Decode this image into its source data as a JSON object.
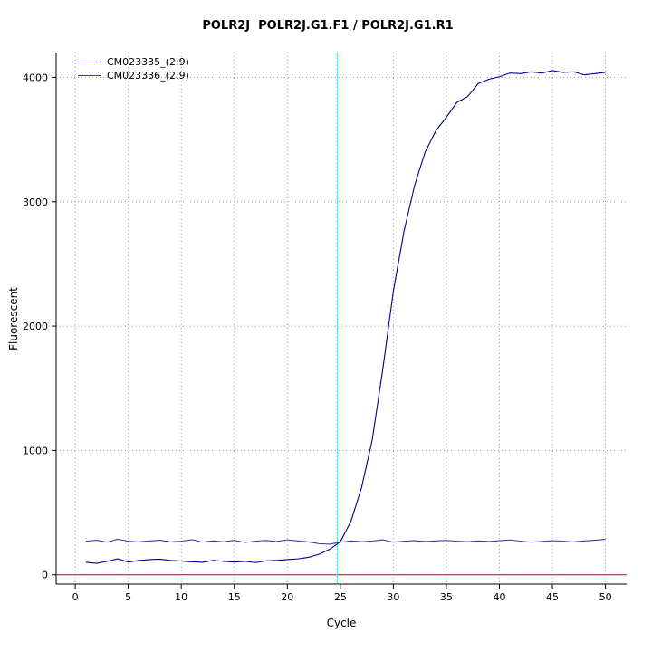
{
  "title": "POLR2J  POLR2J.G1.F1 / POLR2J.G1.R1",
  "chart_data": {
    "type": "line",
    "title": "POLR2J  POLR2J.G1.F1 / POLR2J.G1.R1",
    "xlabel": "Cycle",
    "ylabel": "Fluorescent",
    "xlim": [
      -1.8,
      52
    ],
    "ylim": [
      -75,
      4200
    ],
    "x_ticks": [
      0,
      5,
      10,
      15,
      20,
      25,
      30,
      35,
      40,
      45,
      50
    ],
    "y_ticks": [
      0,
      1000,
      2000,
      3000,
      4000
    ],
    "grid": true,
    "grid_color": "#999999",
    "legend_position": "top-left",
    "x": [
      1,
      2,
      3,
      4,
      5,
      6,
      7,
      8,
      9,
      10,
      11,
      12,
      13,
      14,
      15,
      16,
      17,
      18,
      19,
      20,
      21,
      22,
      23,
      24,
      25,
      26,
      27,
      28,
      29,
      30,
      31,
      32,
      33,
      34,
      35,
      36,
      37,
      38,
      39,
      40,
      41,
      42,
      43,
      44,
      45,
      46,
      47,
      48,
      49,
      50
    ],
    "series": [
      {
        "name": "CM023335_(2:9)",
        "color": "#00008b",
        "values": [
          100,
          92,
          108,
          128,
          102,
          115,
          122,
          126,
          115,
          110,
          104,
          100,
          116,
          108,
          102,
          108,
          98,
          112,
          116,
          122,
          128,
          140,
          165,
          205,
          265,
          430,
          700,
          1080,
          1650,
          2280,
          2760,
          3130,
          3400,
          3570,
          3680,
          3800,
          3845,
          3950,
          3985,
          4005,
          4035,
          4030,
          4045,
          4035,
          4055,
          4040,
          4045,
          4020,
          4030,
          4040
        ]
      },
      {
        "name": "CM023336_(2:9)",
        "color": "#3b3b9d",
        "values": [
          270,
          278,
          262,
          286,
          270,
          264,
          272,
          278,
          264,
          270,
          282,
          262,
          272,
          265,
          277,
          260,
          270,
          276,
          268,
          281,
          272,
          264,
          250,
          246,
          262,
          272,
          266,
          271,
          281,
          262,
          270,
          274,
          268,
          272,
          276,
          270,
          266,
          272,
          268,
          274,
          280,
          270,
          262,
          268,
          274,
          270,
          264,
          272,
          278,
          285
        ]
      }
    ],
    "threshold_cycle_line": {
      "x": 24.7,
      "color": "#00ffff"
    },
    "baseline": {
      "y": 0,
      "color": "#8b2222"
    },
    "axis_color": "#000000"
  }
}
